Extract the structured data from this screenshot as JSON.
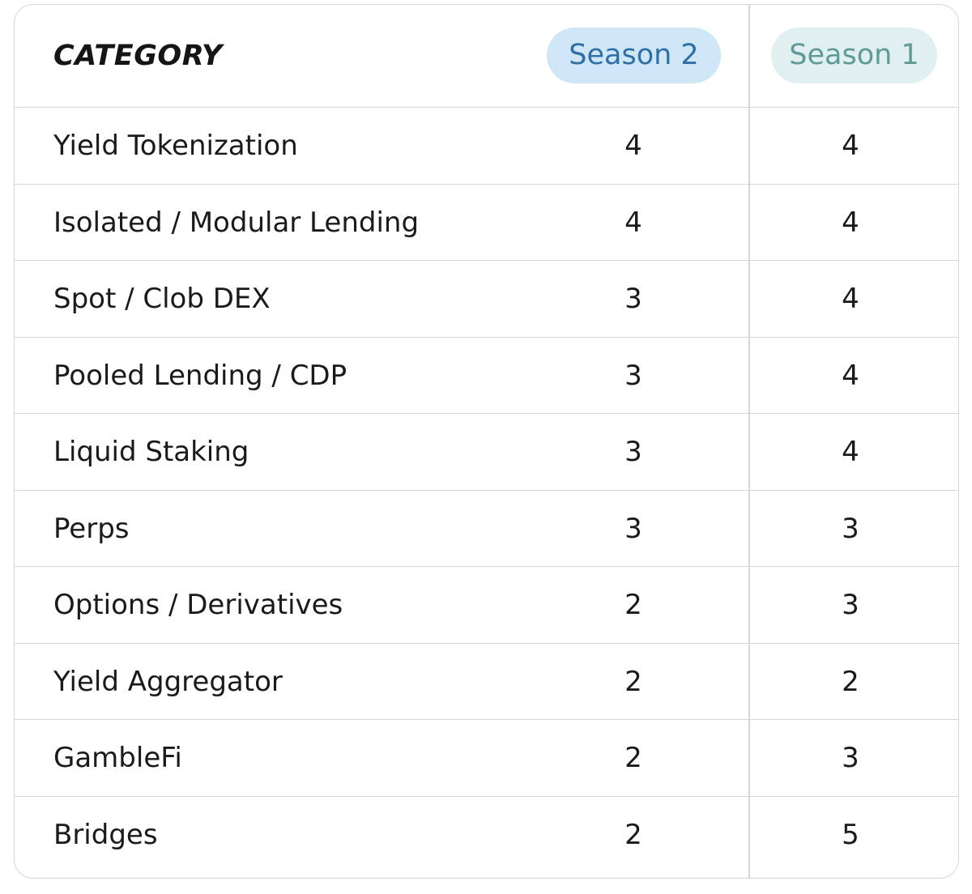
{
  "table": {
    "header": {
      "category": "CATEGORY",
      "season2": "Season 2",
      "season1": "Season 1"
    },
    "rows": [
      {
        "category": "Yield Tokenization",
        "season2": "4",
        "season1": "4"
      },
      {
        "category": "Isolated / Modular Lending",
        "season2": "4",
        "season1": "4"
      },
      {
        "category": "Spot / Clob DEX",
        "season2": "3",
        "season1": "4"
      },
      {
        "category": "Pooled Lending / CDP",
        "season2": "3",
        "season1": "4"
      },
      {
        "category": "Liquid Staking",
        "season2": "3",
        "season1": "4"
      },
      {
        "category": "Perps",
        "season2": "3",
        "season1": "3"
      },
      {
        "category": "Options / Derivatives",
        "season2": "2",
        "season1": "3"
      },
      {
        "category": "Yield Aggregator",
        "season2": "2",
        "season1": "2"
      },
      {
        "category": "GambleFi",
        "season2": "2",
        "season1": "3"
      },
      {
        "category": "Bridges",
        "season2": "2",
        "season1": "5"
      }
    ]
  },
  "colors": {
    "season2_pill_bg": "#cfe6f7",
    "season2_pill_text": "#2f6fa8",
    "season1_pill_bg": "#e0eff0",
    "season1_pill_text": "#5f9a98",
    "border": "#d3d7dc"
  }
}
